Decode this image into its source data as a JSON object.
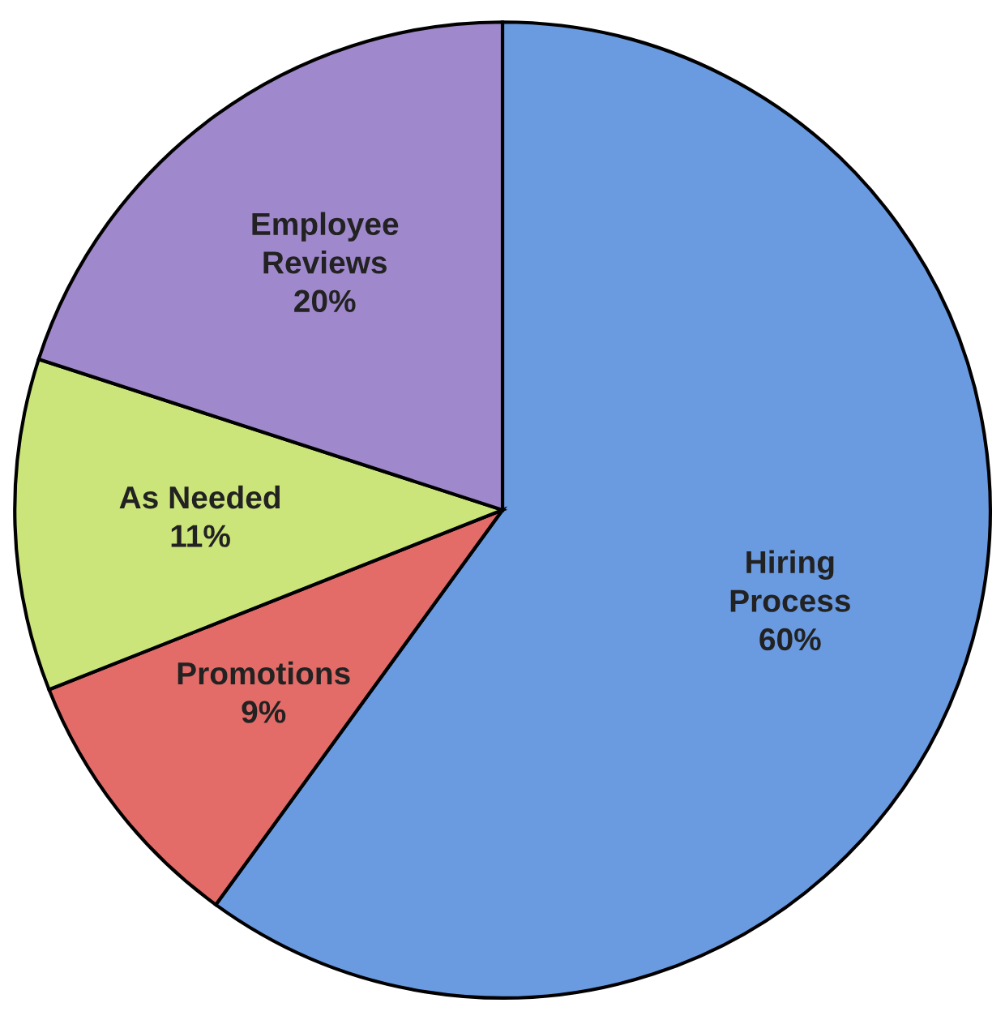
{
  "chart_data": {
    "type": "pie",
    "categories": [
      "Hiring\nProcess",
      "Promotions",
      "As Needed",
      "Employee\nReviews"
    ],
    "values": [
      60,
      9,
      11,
      20
    ],
    "value_labels": [
      "60%",
      "9%",
      "11%",
      "20%"
    ],
    "colors": [
      "#6a9ae0",
      "#e46c68",
      "#cce57a",
      "#a088cc"
    ]
  }
}
